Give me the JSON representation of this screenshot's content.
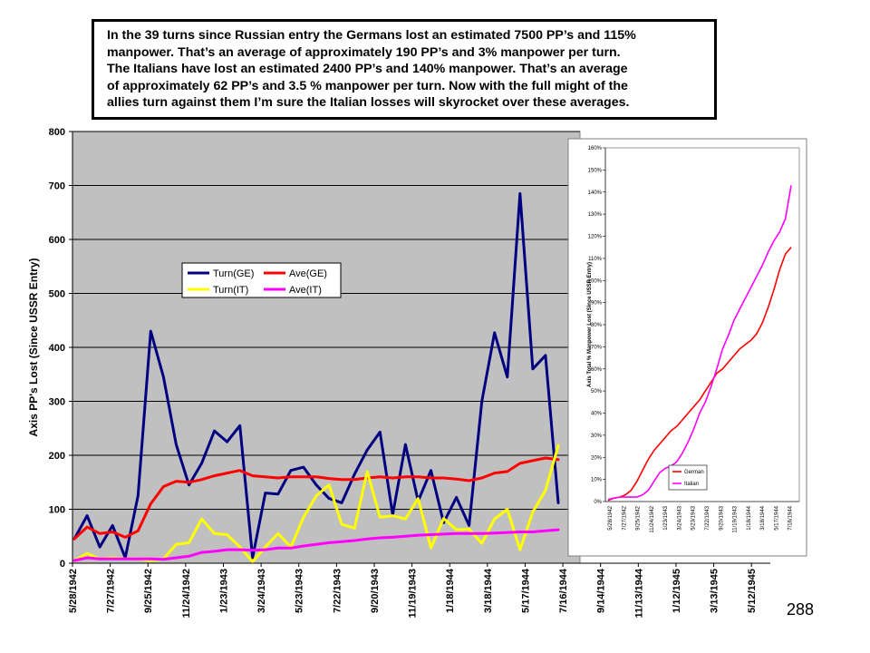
{
  "text_box": {
    "lines": [
      "In the 39 turns since Russian entry the Germans lost an estimated 7500 PP’s and 115%",
      "manpower.  That’s an average of approximately 190 PP’s and 3% manpower per turn.",
      "The Italians have lost an estimated 2400 PP’s and 140% manpower.  That’s an average",
      "of approximately 62 PP’s and 3.5 % manpower per turn.  Now with the full might of the",
      "allies turn against them I’m sure the Italian losses will skyrocket over these averages."
    ]
  },
  "page_number": "288",
  "colors": {
    "plot_bg": "#c0c0c0",
    "turn_ge": "#000080",
    "ave_ge": "#ff0000",
    "turn_it": "#ffff00",
    "ave_it": "#ff00ff",
    "grid": "#000000"
  },
  "chart_data": [
    {
      "type": "line",
      "ylabel": "Axis PP's Lost (Since USSR Entry)",
      "ylim": [
        0,
        800
      ],
      "ytick_labels": [
        "0",
        "100",
        "200",
        "300",
        "400",
        "500",
        "600",
        "700",
        "800"
      ],
      "xtick_labels": [
        "5/28/1942",
        "7/27/1942",
        "9/25/1942",
        "11/24/1942",
        "1/23/1943",
        "3/24/1943",
        "5/23/1943",
        "7/22/1943",
        "9/20/1943",
        "11/19/1943",
        "1/18/1944",
        "3/18/1944",
        "5/17/1944",
        "7/16/1944",
        "9/14/1944",
        "11/13/1944",
        "1/12/1945",
        "3/13/1945",
        "5/12/1945"
      ],
      "grid": "horizontal",
      "legend_position": "upper-left-center",
      "series": [
        {
          "name": "Turn(GE)",
          "color": "#000080",
          "values": [
            45,
            88,
            30,
            70,
            10,
            125,
            430,
            345,
            220,
            145,
            185,
            245,
            225,
            255,
            10,
            130,
            128,
            172,
            178,
            145,
            120,
            112,
            165,
            210,
            243,
            90,
            220,
            115,
            172,
            75,
            122,
            70,
            300,
            427,
            345,
            685,
            360,
            385,
            112
          ]
        },
        {
          "name": "Ave(GE)",
          "color": "#ff0000",
          "values": [
            45,
            67,
            55,
            58,
            48,
            60,
            110,
            142,
            152,
            150,
            155,
            162,
            167,
            172,
            162,
            160,
            158,
            160,
            160,
            160,
            157,
            155,
            155,
            158,
            160,
            158,
            160,
            160,
            158,
            158,
            156,
            153,
            158,
            167,
            170,
            185,
            190,
            195,
            192
          ]
        },
        {
          "name": "Turn(IT)",
          "color": "#ffff00",
          "values": [
            5,
            18,
            8,
            10,
            8,
            8,
            5,
            8,
            35,
            38,
            82,
            55,
            53,
            30,
            3,
            30,
            55,
            30,
            85,
            125,
            145,
            72,
            65,
            170,
            85,
            88,
            82,
            120,
            28,
            83,
            62,
            63,
            37,
            82,
            100,
            25,
            95,
            135,
            218
          ]
        },
        {
          "name": "Ave(IT)",
          "color": "#ff00ff",
          "values": [
            5,
            10,
            8,
            8,
            8,
            8,
            8,
            7,
            10,
            13,
            20,
            22,
            25,
            25,
            24,
            25,
            28,
            28,
            32,
            35,
            38,
            40,
            42,
            45,
            47,
            48,
            50,
            52,
            53,
            54,
            55,
            55,
            55,
            56,
            57,
            58,
            58,
            60,
            62
          ]
        }
      ]
    },
    {
      "type": "line",
      "ylabel": "Axis Total % Manpower Lost (Since USSR Entry)",
      "ylim": [
        0,
        160
      ],
      "ytick_labels": [
        "0%",
        "10%",
        "20%",
        "30%",
        "40%",
        "50%",
        "60%",
        "70%",
        "80%",
        "90%",
        "100%",
        "110%",
        "120%",
        "130%",
        "140%",
        "150%",
        "160%"
      ],
      "xtick_labels": [
        "5/28/1942",
        "7/27/1942",
        "9/25/1942",
        "11/24/1942",
        "1/23/1943",
        "3/24/1943",
        "5/23/1943",
        "7/22/1943",
        "9/20/1943",
        "11/19/1943",
        "1/18/1944",
        "3/18/1944",
        "5/17/1944",
        "7/16/1944"
      ],
      "legend_position": "bottom-center",
      "series": [
        {
          "name": "German",
          "color": "#ff0000",
          "values": [
            0.5,
            1.5,
            2,
            3,
            5,
            9,
            14,
            19,
            23,
            26,
            29,
            32,
            34,
            37,
            40,
            43,
            46,
            50,
            54,
            58,
            60,
            63,
            66,
            69,
            71,
            73,
            76,
            81,
            88,
            96,
            105,
            112,
            115
          ]
        },
        {
          "name": "Italian",
          "color": "#ff00ff",
          "values": [
            1,
            1.5,
            2,
            2,
            2,
            2,
            3,
            5,
            9,
            13,
            15,
            16,
            18,
            22,
            27,
            33,
            40,
            45,
            52,
            60,
            69,
            75,
            82,
            87,
            92,
            97,
            102,
            107,
            113,
            118,
            122,
            128,
            143
          ]
        }
      ]
    }
  ]
}
